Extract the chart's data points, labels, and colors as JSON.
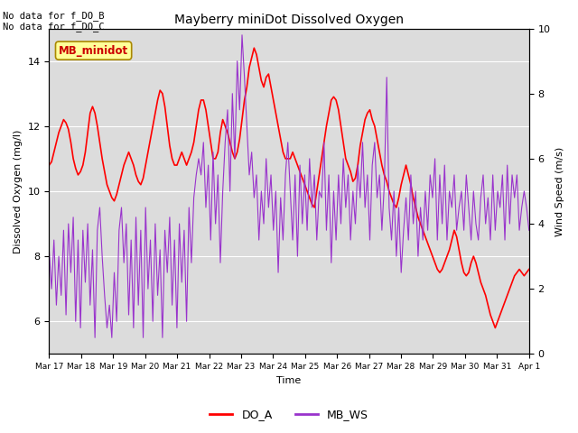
{
  "title": "Mayberry miniDot Dissolved Oxygen",
  "xlabel": "Time",
  "ylabel_left": "Dissolved Oxygen (mg/l)",
  "ylabel_right": "Wind Speed (m/s)",
  "ylim_left": [
    5.0,
    15.0
  ],
  "ylim_right": [
    0.0,
    10.0
  ],
  "annotation_text": "No data for f_DO_B\nNo data for f_DO_C",
  "legend_label_DO": "DO_A",
  "legend_label_WS": "MB_WS",
  "legend_label_minidot": "MB_minidot",
  "bg_color": "#dcdcdc",
  "do_color": "#ff0000",
  "ws_color": "#9933cc",
  "minidot_box_color": "#ffff99",
  "minidot_text_color": "#cc0000",
  "x_tick_labels": [
    "Mar 17",
    "Mar 18",
    "Mar 19",
    "Mar 20",
    "Mar 21",
    "Mar 22",
    "Mar 23",
    "Mar 24",
    "Mar 25",
    "Mar 26",
    "Mar 27",
    "Mar 28",
    "Mar 29",
    "Mar 30",
    "Mar 31",
    "Apr 1"
  ],
  "do_values": [
    10.8,
    10.9,
    11.2,
    11.5,
    11.8,
    12.0,
    12.2,
    12.1,
    11.9,
    11.5,
    11.0,
    10.7,
    10.5,
    10.6,
    10.8,
    11.2,
    11.8,
    12.4,
    12.6,
    12.4,
    12.0,
    11.5,
    11.0,
    10.6,
    10.2,
    10.0,
    9.8,
    9.7,
    9.9,
    10.2,
    10.5,
    10.8,
    11.0,
    11.2,
    11.0,
    10.8,
    10.5,
    10.3,
    10.2,
    10.4,
    10.8,
    11.2,
    11.6,
    12.0,
    12.4,
    12.8,
    13.1,
    13.0,
    12.6,
    12.0,
    11.4,
    11.0,
    10.8,
    10.8,
    11.0,
    11.2,
    11.0,
    10.8,
    11.0,
    11.2,
    11.5,
    12.0,
    12.5,
    12.8,
    12.8,
    12.5,
    12.0,
    11.5,
    11.0,
    11.0,
    11.2,
    11.8,
    12.2,
    12.0,
    11.8,
    11.5,
    11.2,
    11.0,
    11.2,
    11.6,
    12.2,
    12.8,
    13.2,
    13.8,
    14.1,
    14.4,
    14.2,
    13.8,
    13.4,
    13.2,
    13.5,
    13.6,
    13.2,
    12.8,
    12.4,
    12.0,
    11.6,
    11.2,
    11.0,
    11.0,
    11.0,
    11.2,
    11.0,
    10.8,
    10.6,
    10.4,
    10.2,
    10.0,
    9.8,
    9.6,
    9.5,
    10.0,
    10.5,
    11.0,
    11.5,
    12.0,
    12.4,
    12.8,
    12.9,
    12.8,
    12.5,
    12.0,
    11.5,
    11.0,
    10.8,
    10.6,
    10.3,
    10.4,
    10.8,
    11.4,
    11.8,
    12.2,
    12.4,
    12.5,
    12.2,
    12.0,
    11.6,
    11.2,
    10.8,
    10.5,
    10.3,
    10.0,
    9.8,
    9.6,
    9.5,
    9.8,
    10.2,
    10.5,
    10.8,
    10.5,
    10.2,
    9.8,
    9.5,
    9.2,
    9.0,
    8.8,
    8.6,
    8.4,
    8.2,
    8.0,
    7.8,
    7.6,
    7.5,
    7.6,
    7.8,
    8.0,
    8.2,
    8.5,
    8.8,
    8.6,
    8.2,
    7.8,
    7.5,
    7.4,
    7.5,
    7.8,
    8.0,
    7.8,
    7.5,
    7.2,
    7.0,
    6.8,
    6.5,
    6.2,
    6.0,
    5.8,
    6.0,
    6.2,
    6.4,
    6.6,
    6.8,
    7.0,
    7.2,
    7.4,
    7.5,
    7.6,
    7.5,
    7.4,
    7.5,
    7.6
  ],
  "ws_values": [
    3.2,
    2.0,
    3.5,
    1.5,
    3.0,
    1.8,
    3.8,
    1.2,
    4.0,
    2.5,
    4.2,
    1.0,
    3.5,
    0.8,
    3.8,
    2.2,
    4.0,
    1.5,
    3.2,
    0.5,
    3.8,
    4.5,
    3.0,
    1.8,
    0.8,
    1.5,
    0.5,
    2.5,
    1.0,
    3.8,
    4.5,
    2.8,
    4.0,
    1.2,
    3.5,
    0.8,
    4.2,
    1.5,
    3.8,
    0.5,
    4.5,
    2.0,
    3.5,
    1.0,
    4.0,
    1.8,
    3.2,
    0.5,
    3.8,
    2.5,
    4.2,
    1.5,
    3.5,
    0.8,
    4.0,
    2.2,
    3.8,
    1.0,
    4.5,
    2.8,
    4.8,
    5.5,
    6.0,
    5.5,
    6.5,
    4.5,
    5.8,
    3.5,
    6.2,
    4.0,
    5.5,
    2.8,
    5.0,
    6.5,
    7.5,
    5.0,
    8.0,
    6.0,
    9.0,
    7.5,
    9.8,
    8.5,
    7.0,
    5.5,
    6.2,
    4.8,
    5.5,
    3.5,
    5.0,
    4.0,
    6.0,
    4.5,
    5.5,
    3.8,
    5.0,
    2.5,
    4.8,
    3.5,
    5.5,
    6.5,
    5.0,
    3.5,
    5.5,
    3.0,
    5.8,
    4.0,
    5.5,
    3.8,
    6.0,
    4.5,
    5.5,
    3.5,
    5.0,
    4.8,
    6.5,
    3.8,
    5.5,
    2.8,
    5.0,
    3.5,
    5.5,
    4.0,
    6.0,
    4.5,
    5.5,
    3.5,
    5.0,
    4.0,
    5.8,
    4.8,
    6.5,
    4.5,
    5.5,
    3.5,
    5.8,
    6.5,
    4.8,
    5.5,
    3.8,
    5.2,
    8.5,
    4.5,
    3.5,
    5.0,
    3.0,
    4.5,
    2.5,
    3.8,
    4.8,
    3.5,
    5.5,
    4.0,
    5.0,
    3.0,
    4.5,
    3.5,
    5.0,
    3.8,
    5.5,
    4.8,
    6.0,
    3.5,
    5.5,
    4.0,
    5.8,
    3.5,
    5.0,
    4.5,
    5.5,
    3.8,
    4.5,
    5.0,
    3.8,
    5.5,
    4.5,
    3.5,
    5.0,
    4.0,
    3.5,
    4.8,
    5.5,
    4.0,
    4.8,
    3.5,
    5.5,
    3.8,
    5.0,
    4.5,
    5.5,
    3.5,
    5.8,
    4.0,
    5.5,
    4.8,
    5.5,
    3.8,
    4.5,
    5.0,
    4.5,
    3.8
  ]
}
